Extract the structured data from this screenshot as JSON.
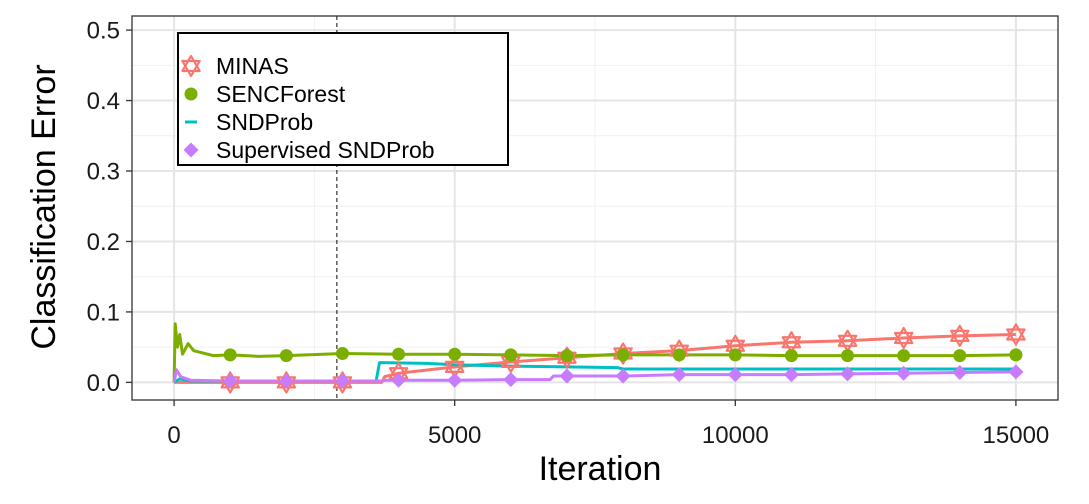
{
  "chart_data": {
    "type": "line",
    "xlabel": "Iteration",
    "ylabel": "Classification Error",
    "xlim": [
      -750,
      15750
    ],
    "ylim": [
      -0.025,
      0.52
    ],
    "x_ticks": [
      "0",
      "5000",
      "10000",
      "15000"
    ],
    "x_tick_values": [
      0,
      5000,
      10000,
      15000
    ],
    "y_ticks": [
      "0.0",
      "0.1",
      "0.2",
      "0.3",
      "0.4",
      "0.5"
    ],
    "y_tick_values": [
      0,
      0.1,
      0.2,
      0.3,
      0.4,
      0.5
    ],
    "grid": true,
    "legend_position": "top-left",
    "vline_x": 2900,
    "series": [
      {
        "name": "MINAS",
        "color": "#F8766D",
        "marker": "hexagram",
        "line": [
          [
            0,
            0
          ],
          [
            1000,
            0
          ],
          [
            2000,
            0
          ],
          [
            3000,
            0
          ],
          [
            3700,
            0
          ],
          [
            3750,
            0.008
          ],
          [
            4000,
            0.013
          ],
          [
            5000,
            0.022
          ],
          [
            6000,
            0.029
          ],
          [
            7000,
            0.035
          ],
          [
            8000,
            0.041
          ],
          [
            9000,
            0.045
          ],
          [
            10000,
            0.052
          ],
          [
            11000,
            0.057
          ],
          [
            12000,
            0.059
          ],
          [
            13000,
            0.063
          ],
          [
            14000,
            0.066
          ],
          [
            15000,
            0.068
          ]
        ],
        "markers": [
          [
            1000,
            0
          ],
          [
            2000,
            0
          ],
          [
            3000,
            0
          ],
          [
            4000,
            0.013
          ],
          [
            5000,
            0.022
          ],
          [
            6000,
            0.029
          ],
          [
            7000,
            0.035
          ],
          [
            8000,
            0.041
          ],
          [
            9000,
            0.045
          ],
          [
            10000,
            0.052
          ],
          [
            11000,
            0.057
          ],
          [
            12000,
            0.059
          ],
          [
            13000,
            0.063
          ],
          [
            14000,
            0.066
          ],
          [
            15000,
            0.068
          ]
        ]
      },
      {
        "name": "SENCForest",
        "color": "#7CAE00",
        "marker": "circle",
        "line": [
          [
            0,
            0
          ],
          [
            20,
            0.083
          ],
          [
            60,
            0.05
          ],
          [
            100,
            0.068
          ],
          [
            150,
            0.04
          ],
          [
            250,
            0.055
          ],
          [
            350,
            0.045
          ],
          [
            500,
            0.042
          ],
          [
            700,
            0.038
          ],
          [
            1000,
            0.039
          ],
          [
            1500,
            0.037
          ],
          [
            2000,
            0.038
          ],
          [
            3000,
            0.041
          ],
          [
            4000,
            0.04
          ],
          [
            5000,
            0.04
          ],
          [
            6000,
            0.039
          ],
          [
            7000,
            0.038
          ],
          [
            8000,
            0.039
          ],
          [
            9000,
            0.039
          ],
          [
            10000,
            0.039
          ],
          [
            11000,
            0.038
          ],
          [
            12000,
            0.038
          ],
          [
            13000,
            0.038
          ],
          [
            14000,
            0.038
          ],
          [
            15000,
            0.039
          ]
        ],
        "markers": [
          [
            1000,
            0.039
          ],
          [
            2000,
            0.038
          ],
          [
            3000,
            0.041
          ],
          [
            4000,
            0.04
          ],
          [
            5000,
            0.04
          ],
          [
            6000,
            0.039
          ],
          [
            7000,
            0.038
          ],
          [
            8000,
            0.039
          ],
          [
            9000,
            0.039
          ],
          [
            10000,
            0.039
          ],
          [
            11000,
            0.038
          ],
          [
            12000,
            0.038
          ],
          [
            13000,
            0.038
          ],
          [
            14000,
            0.038
          ],
          [
            15000,
            0.039
          ]
        ]
      },
      {
        "name": "SNDProb",
        "color": "#00BFC4",
        "marker": "dash",
        "line": [
          [
            0,
            0
          ],
          [
            100,
            0.005
          ],
          [
            300,
            0.002
          ],
          [
            1000,
            0.002
          ],
          [
            3600,
            0.002
          ],
          [
            3660,
            0.028
          ],
          [
            4500,
            0.027
          ],
          [
            5000,
            0.025
          ],
          [
            6000,
            0.023
          ],
          [
            7000,
            0.022
          ],
          [
            7900,
            0.021
          ],
          [
            8000,
            0.019
          ],
          [
            9000,
            0.019
          ],
          [
            10000,
            0.019
          ],
          [
            11000,
            0.019
          ],
          [
            12000,
            0.019
          ],
          [
            13000,
            0.019
          ],
          [
            14000,
            0.019
          ],
          [
            15000,
            0.019
          ]
        ],
        "markers": []
      },
      {
        "name": "Supervised SNDProb",
        "color": "#C77CFF",
        "marker": "diamond",
        "line": [
          [
            0,
            0
          ],
          [
            40,
            0.018
          ],
          [
            120,
            0.008
          ],
          [
            300,
            0.003
          ],
          [
            1000,
            0.002
          ],
          [
            3700,
            0.002
          ],
          [
            3760,
            0.003
          ],
          [
            4000,
            0.003
          ],
          [
            5000,
            0.003
          ],
          [
            6000,
            0.004
          ],
          [
            6700,
            0.004
          ],
          [
            6760,
            0.009
          ],
          [
            8000,
            0.009
          ],
          [
            9000,
            0.011
          ],
          [
            10000,
            0.011
          ],
          [
            11000,
            0.011
          ],
          [
            12000,
            0.012
          ],
          [
            13000,
            0.013
          ],
          [
            14000,
            0.014
          ],
          [
            15000,
            0.015
          ]
        ],
        "markers": [
          [
            1000,
            0.002
          ],
          [
            2000,
            0.002
          ],
          [
            3000,
            0.002
          ],
          [
            4000,
            0.003
          ],
          [
            5000,
            0.003
          ],
          [
            6000,
            0.004
          ],
          [
            7000,
            0.009
          ],
          [
            8000,
            0.009
          ],
          [
            9000,
            0.011
          ],
          [
            10000,
            0.011
          ],
          [
            11000,
            0.011
          ],
          [
            12000,
            0.012
          ],
          [
            13000,
            0.013
          ],
          [
            14000,
            0.014
          ],
          [
            15000,
            0.015
          ]
        ]
      }
    ]
  }
}
